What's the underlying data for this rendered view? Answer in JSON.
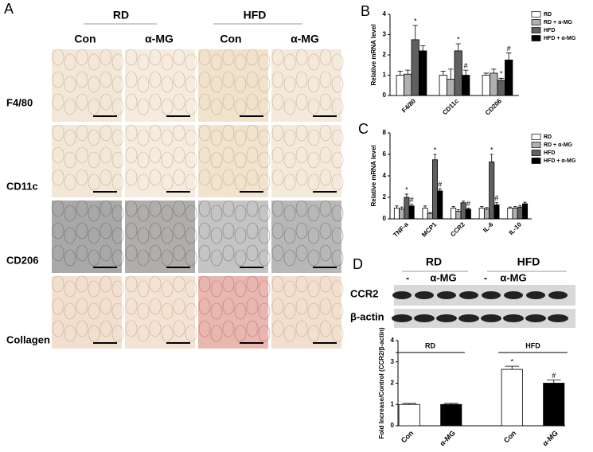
{
  "panel_labels": [
    "A",
    "B",
    "C",
    "D"
  ],
  "panel_a": {
    "groups": [
      "RD",
      "HFD"
    ],
    "columns": [
      "Con",
      "α-MG",
      "Con",
      "α-MG"
    ],
    "rows": [
      "F4/80",
      "CD11c",
      "CD206",
      "Collagen"
    ]
  },
  "blot": {
    "groups": [
      "RD",
      "HFD"
    ],
    "treatments": [
      "-",
      "α-MG",
      "-",
      "α-MG"
    ],
    "bands": [
      "CCR2",
      "β-actin"
    ]
  },
  "chart_data": [
    {
      "type": "bar",
      "y_label": "Relative mRNA level",
      "categories": [
        "F4/80",
        "CD11c",
        "CD206"
      ],
      "series": [
        {
          "name": "RD",
          "color": "#ffffff",
          "values": [
            1.0,
            1.0,
            1.0
          ],
          "errors": [
            0.2,
            0.2,
            0.1
          ],
          "significance": [
            null,
            null,
            null
          ]
        },
        {
          "name": "RD + α-MG",
          "color": "#b0b0b0",
          "values": [
            1.05,
            0.8,
            1.1
          ],
          "errors": [
            0.2,
            0.5,
            0.2
          ],
          "significance": [
            null,
            null,
            null
          ]
        },
        {
          "name": "HFD",
          "color": "#606060",
          "values": [
            2.75,
            2.2,
            0.75
          ],
          "errors": [
            0.7,
            0.35,
            0.1
          ],
          "significance": [
            "*",
            "*",
            "*"
          ]
        },
        {
          "name": "HFD + α-MG",
          "color": "#000000",
          "values": [
            2.2,
            1.0,
            1.75
          ],
          "errors": [
            0.25,
            0.25,
            0.35
          ],
          "significance": [
            null,
            "#",
            "#"
          ]
        }
      ],
      "ylim": [
        0,
        4
      ],
      "yticks": [
        0,
        1,
        2,
        3,
        4
      ]
    },
    {
      "type": "bar",
      "y_label": "Relative mRNA level",
      "categories": [
        "TNF-a",
        "MCP1",
        "CCR2",
        "IL-6",
        "IL-10"
      ],
      "series": [
        {
          "name": "RD",
          "color": "#ffffff",
          "values": [
            1.0,
            1.0,
            1.0,
            1.0,
            1.0
          ],
          "errors": [
            0.2,
            0.2,
            0.15,
            0.15,
            0.1
          ],
          "significance": [
            null,
            null,
            null,
            null,
            null
          ]
        },
        {
          "name": "RD + α-MG",
          "color": "#b0b0b0",
          "values": [
            0.9,
            0.5,
            0.7,
            0.9,
            1.0
          ],
          "errors": [
            0.2,
            0.1,
            0.15,
            0.15,
            0.15
          ],
          "significance": [
            null,
            null,
            null,
            null,
            null
          ]
        },
        {
          "name": "HFD",
          "color": "#606060",
          "values": [
            2.0,
            5.5,
            1.5,
            5.3,
            1.1
          ],
          "errors": [
            0.3,
            0.5,
            0.15,
            0.7,
            0.15
          ],
          "significance": [
            "*",
            "*",
            null,
            "*",
            null
          ]
        },
        {
          "name": "HFD + α-MG",
          "color": "#000000",
          "values": [
            1.2,
            2.6,
            0.9,
            1.3,
            1.4
          ],
          "errors": [
            0.15,
            0.2,
            0.1,
            0.2,
            0.15
          ],
          "significance": [
            "#",
            "#",
            "#",
            "#",
            null
          ]
        }
      ],
      "ylim": [
        0,
        8
      ],
      "yticks": [
        0,
        2,
        4,
        6,
        8
      ]
    },
    {
      "type": "bar",
      "y_label": "Fold Increase/Control (CCR2/β-actin)",
      "categories": [
        "Con",
        "α-MG",
        "Con",
        "α-MG"
      ],
      "group_labels": [
        "RD",
        "HFD"
      ],
      "values": [
        1.0,
        1.0,
        2.65,
        2.0
      ],
      "errors": [
        0.05,
        0.05,
        0.15,
        0.15
      ],
      "colors": [
        "#ffffff",
        "#000000",
        "#ffffff",
        "#000000"
      ],
      "significance": [
        null,
        null,
        "*",
        "#"
      ],
      "ylim": [
        0,
        4
      ],
      "yticks": [
        0,
        1,
        2,
        3,
        4
      ]
    }
  ]
}
